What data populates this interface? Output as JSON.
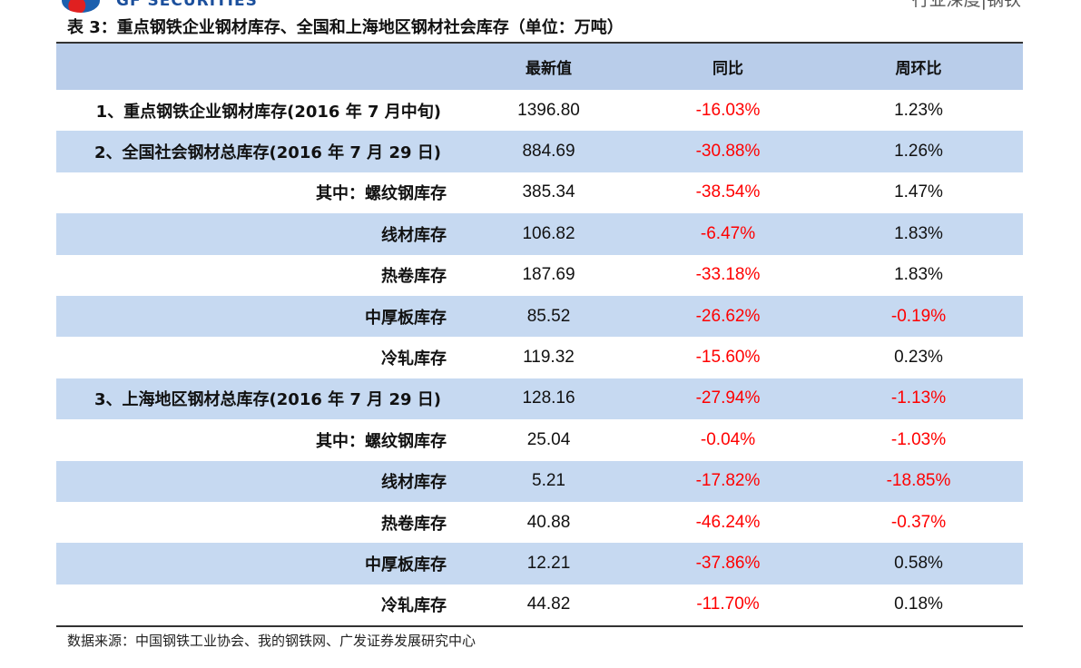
{
  "header": {
    "logo_text": "GF SECURITIES",
    "top_right_text": "行业深度|钢铁"
  },
  "table_title": "表 3：重点钢铁企业钢材库存、全国和上海地区钢材社会库存（单位：万吨）",
  "columns": [
    "",
    "最新值",
    "同比",
    "周环比"
  ],
  "rows": [
    {
      "label": "1、重点钢铁企业钢材库存(2016 年 7 月中旬)",
      "value": "1396.80",
      "yoy": "-16.03%",
      "wow": "1.23%"
    },
    {
      "label": "2、全国社会钢材总库存(2016 年 7 月 29 日)",
      "value": "884.69",
      "yoy": "-30.88%",
      "wow": "1.26%"
    },
    {
      "label": "其中：螺纹钢库存",
      "value": "385.34",
      "yoy": "-38.54%",
      "wow": "1.47%"
    },
    {
      "label": "线材库存",
      "value": "106.82",
      "yoy": "-6.47%",
      "wow": "1.83%"
    },
    {
      "label": "热卷库存",
      "value": "187.69",
      "yoy": "-33.18%",
      "wow": "1.83%"
    },
    {
      "label": "中厚板库存",
      "value": "85.52",
      "yoy": "-26.62%",
      "wow": "-0.19%"
    },
    {
      "label": "冷轧库存",
      "value": "119.32",
      "yoy": "-15.60%",
      "wow": "0.23%"
    },
    {
      "label": "3、上海地区钢材总库存(2016 年 7 月 29 日)",
      "value": "128.16",
      "yoy": "-27.94%",
      "wow": "-1.13%"
    },
    {
      "label": "其中：螺纹钢库存",
      "value": "25.04",
      "yoy": "-0.04%",
      "wow": "-1.03%"
    },
    {
      "label": "线材库存",
      "value": "5.21",
      "yoy": "-17.82%",
      "wow": "-18.85%"
    },
    {
      "label": "热卷库存",
      "value": "40.88",
      "yoy": "-46.24%",
      "wow": "-0.37%"
    },
    {
      "label": "中厚板库存",
      "value": "12.21",
      "yoy": "-37.86%",
      "wow": "0.58%"
    },
    {
      "label": "冷轧库存",
      "value": "44.82",
      "yoy": "-11.70%",
      "wow": "0.18%"
    }
  ],
  "source": "数据来源：中国钢铁工业协会、我的钢铁网、广发证券发展研究中心",
  "colors": {
    "header_bg": "#b9cdea",
    "alt_row_bg": "#c6d9f1",
    "negative": "#ff0000",
    "brand_blue": "#1b4f9c"
  }
}
